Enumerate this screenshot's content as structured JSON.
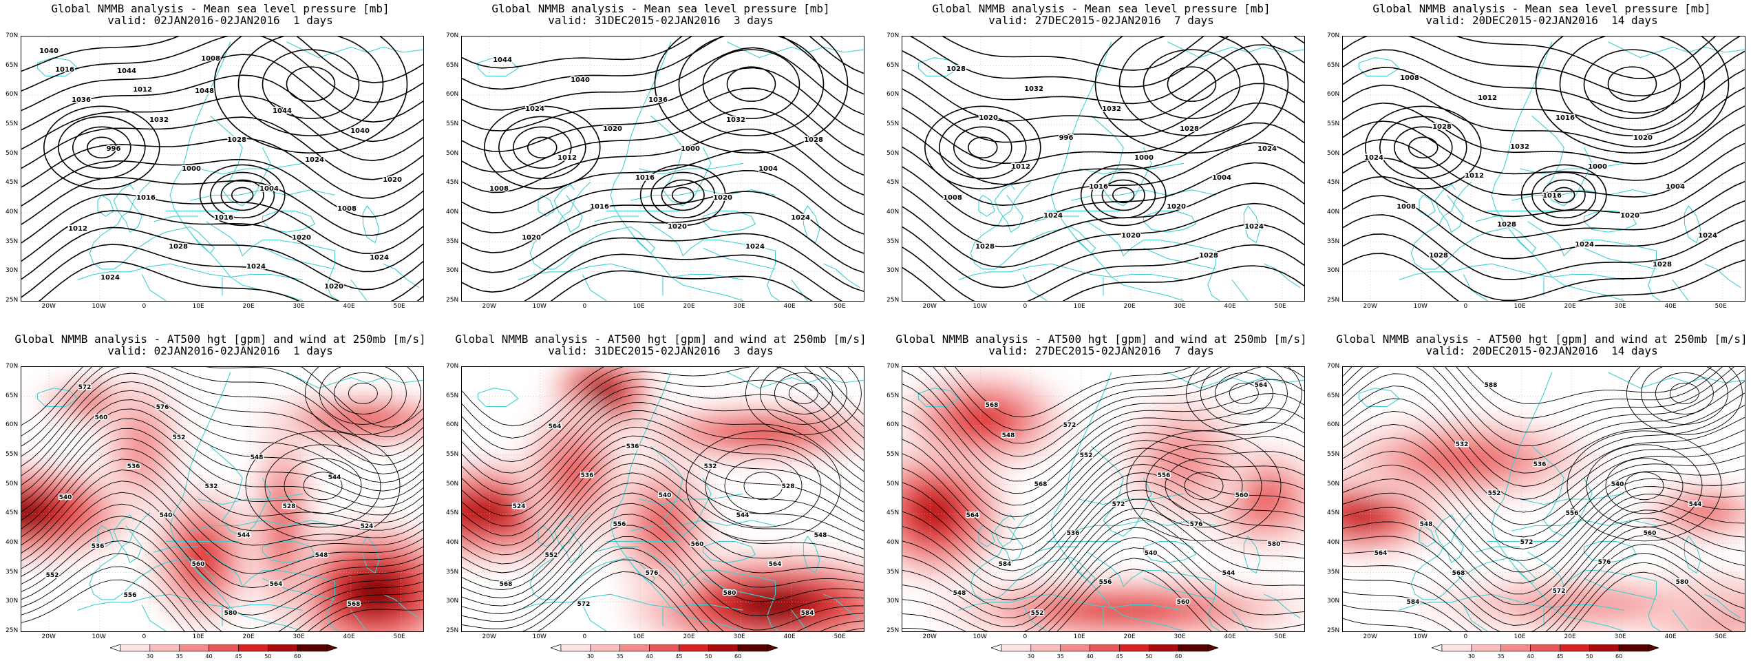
{
  "lat_ticks": [
    "70N",
    "65N",
    "60N",
    "55N",
    "50N",
    "45N",
    "40N",
    "35N",
    "30N",
    "25N"
  ],
  "lon_ticks": [
    "20W",
    "10W",
    "0",
    "10E",
    "20E",
    "30E",
    "40E",
    "50E"
  ],
  "colorbar_ticks": [
    "30",
    "35",
    "40",
    "45",
    "50",
    "60"
  ],
  "colors": {
    "coast": "#3fcfd0",
    "grid": "#bbbbbb",
    "shade": [
      "#fde3e3",
      "#f9bcbc",
      "#f28c8c",
      "#e85858",
      "#db2222",
      "#a80c0c",
      "#5a0000"
    ]
  },
  "panels": [
    {
      "row": "top",
      "title": "Global NMMB analysis - Mean sea level pressure [mb]",
      "valid": "valid: 02JAN2016-02JAN2016  1 days",
      "labels": [
        "1040",
        "1044",
        "1048",
        "1044",
        "1040",
        "1036",
        "1032",
        "1028",
        "1024",
        "1020",
        "996",
        "1000",
        "1004",
        "1008",
        "1012",
        "1016",
        "1016",
        "1020",
        "1024",
        "1024",
        "1028",
        "1024",
        "1020",
        "1016",
        "1012",
        "1008"
      ]
    },
    {
      "row": "top",
      "title": "Global NMMB analysis - Mean sea level pressure [mb]",
      "valid": "valid: 31DEC2015-02JAN2016  3 days",
      "labels": [
        "1044",
        "1040",
        "1036",
        "1032",
        "1028",
        "1024",
        "1020",
        "1000",
        "1004",
        "1008",
        "1012",
        "1016",
        "1020",
        "1024",
        "1020",
        "1016",
        "1020",
        "1024"
      ]
    },
    {
      "row": "top",
      "title": "Global NMMB analysis - Mean sea level pressure [mb]",
      "valid": "valid: 27DEC2015-02JAN2016  7 days",
      "labels": [
        "1028",
        "1032",
        "1032",
        "1028",
        "1024",
        "1020",
        "996",
        "1000",
        "1004",
        "1008",
        "1012",
        "1016",
        "1020",
        "1024",
        "1028",
        "1024",
        "1020",
        "1028"
      ]
    },
    {
      "row": "top",
      "title": "Global NMMB analysis - Mean sea level pressure [mb]",
      "valid": "valid: 20DEC2015-02JAN2016  14 days",
      "labels": [
        "1008",
        "1012",
        "1016",
        "1020",
        "1024",
        "1028",
        "1032",
        "1000",
        "1004",
        "1008",
        "1012",
        "1016",
        "1020",
        "1024",
        "1028",
        "1028",
        "1024",
        "1028"
      ]
    },
    {
      "row": "bottom",
      "title": "Global NMMB analysis - AT500 hgt [gpm] and wind at 250mb [m/s]",
      "valid": "valid: 02JAN2016-02JAN2016  1 days",
      "labels": [
        "560",
        "552",
        "548",
        "544",
        "540",
        "536",
        "532",
        "528",
        "524",
        "536",
        "540",
        "544",
        "548",
        "552",
        "556",
        "560",
        "564",
        "568",
        "572",
        "576",
        "580"
      ]
    },
    {
      "row": "bottom",
      "title": "Global NMMB analysis - AT500 hgt [gpm] and wind at 250mb [m/s]",
      "valid": "valid: 31DEC2015-02JAN2016  3 days",
      "labels": [
        "564",
        "536",
        "532",
        "528",
        "524",
        "536",
        "540",
        "544",
        "548",
        "552",
        "556",
        "560",
        "564",
        "568",
        "572",
        "576",
        "580",
        "584"
      ]
    },
    {
      "row": "bottom",
      "title": "Global NMMB analysis - AT500 hgt [gpm] and wind at 250mb [m/s]",
      "valid": "valid: 27DEC2015-02JAN2016  7 days",
      "labels": [
        "548",
        "552",
        "556",
        "560",
        "564",
        "568",
        "572",
        "576",
        "580",
        "584",
        "536",
        "540",
        "544",
        "548",
        "552",
        "556",
        "560",
        "564",
        "568",
        "572"
      ]
    },
    {
      "row": "bottom",
      "title": "Global NMMB analysis - AT500 hgt [gpm] and wind at 250mb [m/s]",
      "valid": "valid: 20DEC2015-02JAN2016  14 days",
      "labels": [
        "532",
        "536",
        "540",
        "544",
        "548",
        "552",
        "556",
        "560",
        "564",
        "568",
        "572",
        "576",
        "580",
        "584",
        "588",
        "572"
      ]
    }
  ]
}
